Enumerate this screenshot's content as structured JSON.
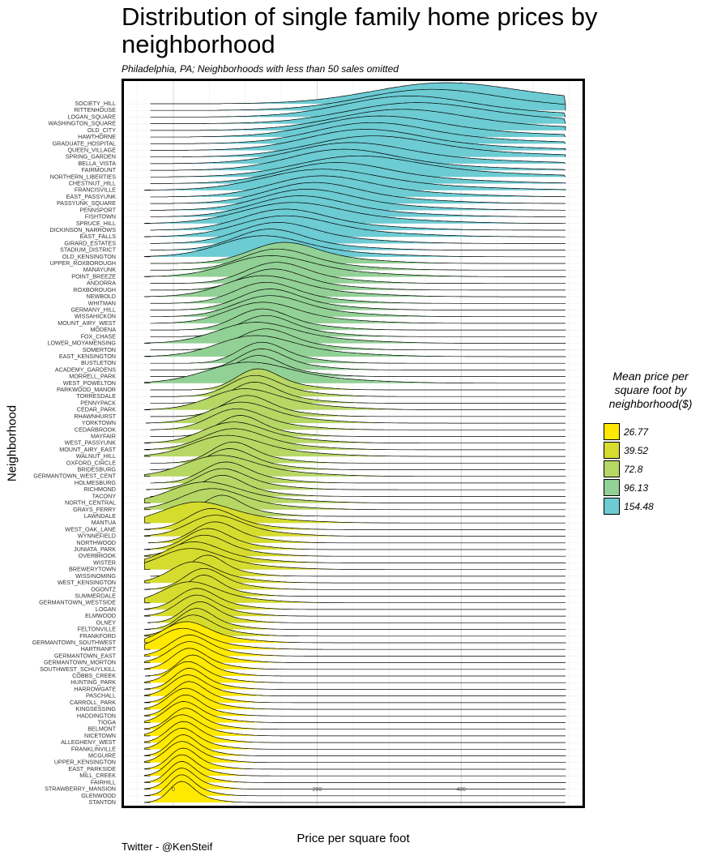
{
  "title": "Distribution of single family home prices by neighborhood",
  "subtitle": "Philadelphia, PA; Neighborhoods with less than 50 sales omitted",
  "caption": "Twitter - @KenSteif",
  "colors": {
    "154.48": "#6ccbd3",
    "96.13": "#92d195",
    "72.8": "#b7d765",
    "39.52": "#d6dc2e",
    "26.77": "#ffe900"
  },
  "chart_data": {
    "type": "ridgeline",
    "title": "Distribution of single family home prices by neighborhood",
    "subtitle": "Philadelphia, PA; Neighborhoods with less than 50 sales omitted",
    "xlabel": "Price per square foot",
    "ylabel": "Neighborhood",
    "x_ticks": [
      0,
      200,
      400
    ],
    "xlim": [
      -50,
      550
    ],
    "grid": true,
    "legend": {
      "title": "Mean price per square foot by neighborhood($)",
      "position": "right",
      "entries": [
        {
          "label": "26.77",
          "color": "#ffe900"
        },
        {
          "label": "39.52",
          "color": "#d6dc2e"
        },
        {
          "label": "72.8",
          "color": "#b7d765"
        },
        {
          "label": "96.13",
          "color": "#92d195"
        },
        {
          "label": "154.48",
          "color": "#6ccbd3"
        }
      ]
    },
    "neighborhoods": [
      {
        "name": "SOCIETY_HILL",
        "group": "154.48",
        "mode": 370,
        "spread": 95
      },
      {
        "name": "RITTENHOUSE",
        "group": "154.48",
        "mode": 350,
        "spread": 90
      },
      {
        "name": "LOGAN_SQUARE",
        "group": "154.48",
        "mode": 320,
        "spread": 85
      },
      {
        "name": "WASHINGTON_SQUARE",
        "group": "154.48",
        "mode": 330,
        "spread": 90
      },
      {
        "name": "OLD_CITY",
        "group": "154.48",
        "mode": 310,
        "spread": 85
      },
      {
        "name": "HAWTHORNE",
        "group": "154.48",
        "mode": 280,
        "spread": 80
      },
      {
        "name": "GRADUATE_HOSPITAL",
        "group": "154.48",
        "mode": 270,
        "spread": 75
      },
      {
        "name": "QUEEN_VILLAGE",
        "group": "154.48",
        "mode": 260,
        "spread": 75
      },
      {
        "name": "SPRING_GARDEN",
        "group": "154.48",
        "mode": 270,
        "spread": 80
      },
      {
        "name": "BELLA_VISTA",
        "group": "154.48",
        "mode": 240,
        "spread": 75
      },
      {
        "name": "FAIRMOUNT",
        "group": "154.48",
        "mode": 230,
        "spread": 70
      },
      {
        "name": "NORTHERN_LIBERTIES",
        "group": "154.48",
        "mode": 250,
        "spread": 80
      },
      {
        "name": "CHESTNUT_HILL",
        "group": "154.48",
        "mode": 220,
        "spread": 70
      },
      {
        "name": "FRANCISVILLE",
        "group": "154.48",
        "mode": 200,
        "spread": 75
      },
      {
        "name": "EAST_PASSYUNK",
        "group": "154.48",
        "mode": 200,
        "spread": 65
      },
      {
        "name": "PASSYUNK_SQUARE",
        "group": "154.48",
        "mode": 190,
        "spread": 60
      },
      {
        "name": "PENNSPORT",
        "group": "154.48",
        "mode": 180,
        "spread": 60
      },
      {
        "name": "FISHTOWN",
        "group": "154.48",
        "mode": 170,
        "spread": 60
      },
      {
        "name": "SPRUCE_HILL",
        "group": "154.48",
        "mode": 160,
        "spread": 65
      },
      {
        "name": "DICKINSON_NARROWS",
        "group": "154.48",
        "mode": 150,
        "spread": 55
      },
      {
        "name": "EAST_FALLS",
        "group": "154.48",
        "mode": 150,
        "spread": 60
      },
      {
        "name": "GIRARD_ESTATES",
        "group": "154.48",
        "mode": 140,
        "spread": 50
      },
      {
        "name": "STADIUM_DISTRICT",
        "group": "154.48",
        "mode": 130,
        "spread": 45
      },
      {
        "name": "OLD_KENSINGTON",
        "group": "154.48",
        "mode": 120,
        "spread": 55
      },
      {
        "name": "UPPER_ROXBOROUGH",
        "group": "96.13",
        "mode": 150,
        "spread": 45
      },
      {
        "name": "MANAYUNK",
        "group": "96.13",
        "mode": 140,
        "spread": 45
      },
      {
        "name": "POINT_BREEZE",
        "group": "96.13",
        "mode": 130,
        "spread": 55
      },
      {
        "name": "ANDORRA",
        "group": "96.13",
        "mode": 140,
        "spread": 40
      },
      {
        "name": "ROXBOROUGH",
        "group": "96.13",
        "mode": 135,
        "spread": 40
      },
      {
        "name": "NEWBOLD",
        "group": "96.13",
        "mode": 120,
        "spread": 50
      },
      {
        "name": "WHITMAN",
        "group": "96.13",
        "mode": 125,
        "spread": 40
      },
      {
        "name": "GERMANY_HILL",
        "group": "96.13",
        "mode": 130,
        "spread": 40
      },
      {
        "name": "WISSAHICKON",
        "group": "96.13",
        "mode": 130,
        "spread": 45
      },
      {
        "name": "MOUNT_AIRY_WEST",
        "group": "96.13",
        "mode": 120,
        "spread": 45
      },
      {
        "name": "MODENA",
        "group": "96.13",
        "mode": 120,
        "spread": 35
      },
      {
        "name": "FOX_CHASE",
        "group": "96.13",
        "mode": 125,
        "spread": 35
      },
      {
        "name": "LOWER_MOYAMENSING",
        "group": "96.13",
        "mode": 110,
        "spread": 50
      },
      {
        "name": "SOMERTON",
        "group": "96.13",
        "mode": 125,
        "spread": 35
      },
      {
        "name": "EAST_KENSINGTON",
        "group": "96.13",
        "mode": 110,
        "spread": 50
      },
      {
        "name": "BUSTLETON",
        "group": "96.13",
        "mode": 120,
        "spread": 30
      },
      {
        "name": "ACADEMY_GARDENS",
        "group": "96.13",
        "mode": 120,
        "spread": 30
      },
      {
        "name": "MORRELL_PARK",
        "group": "96.13",
        "mode": 115,
        "spread": 30
      },
      {
        "name": "WEST_POWELTON",
        "group": "96.13",
        "mode": 100,
        "spread": 55
      },
      {
        "name": "PARKWOOD_MANOR",
        "group": "72.8",
        "mode": 115,
        "spread": 28
      },
      {
        "name": "TORRESDALE",
        "group": "72.8",
        "mode": 110,
        "spread": 32
      },
      {
        "name": "PENNYPACK",
        "group": "72.8",
        "mode": 110,
        "spread": 30
      },
      {
        "name": "CEDAR_PARK",
        "group": "72.8",
        "mode": 95,
        "spread": 45
      },
      {
        "name": "RHAWNHURST",
        "group": "72.8",
        "mode": 100,
        "spread": 30
      },
      {
        "name": "YORKTOWN",
        "group": "72.8",
        "mode": 90,
        "spread": 40
      },
      {
        "name": "CEDARBROOK",
        "group": "72.8",
        "mode": 85,
        "spread": 35
      },
      {
        "name": "MAYFAIR",
        "group": "72.8",
        "mode": 90,
        "spread": 28
      },
      {
        "name": "WEST_PASSYUNK",
        "group": "72.8",
        "mode": 80,
        "spread": 40
      },
      {
        "name": "MOUNT_AIRY_EAST",
        "group": "72.8",
        "mode": 80,
        "spread": 40
      },
      {
        "name": "WALNUT_HILL",
        "group": "72.8",
        "mode": 70,
        "spread": 45
      },
      {
        "name": "OXFORD_CIRCLE",
        "group": "72.8",
        "mode": 80,
        "spread": 28
      },
      {
        "name": "BRIDESBURG",
        "group": "72.8",
        "mode": 75,
        "spread": 30
      },
      {
        "name": "GERMANTOWN_WEST_CENT",
        "group": "72.8",
        "mode": 60,
        "spread": 45
      },
      {
        "name": "HOLMESBURG",
        "group": "72.8",
        "mode": 70,
        "spread": 30
      },
      {
        "name": "RICHMOND",
        "group": "72.8",
        "mode": 65,
        "spread": 32
      },
      {
        "name": "TACONY",
        "group": "72.8",
        "mode": 65,
        "spread": 28
      },
      {
        "name": "NORTH_CENTRAL",
        "group": "72.8",
        "mode": 40,
        "spread": 45
      },
      {
        "name": "GRAYS_FERRY",
        "group": "72.8",
        "mode": 50,
        "spread": 40
      },
      {
        "name": "LAWNDALE",
        "group": "72.8",
        "mode": 65,
        "spread": 25
      },
      {
        "name": "MANTUA",
        "group": "39.52",
        "mode": 30,
        "spread": 45
      },
      {
        "name": "WEST_OAK_LANE",
        "group": "39.52",
        "mode": 50,
        "spread": 30
      },
      {
        "name": "WYNNEFIELD",
        "group": "39.52",
        "mode": 55,
        "spread": 35
      },
      {
        "name": "NORTHWOOD",
        "group": "39.52",
        "mode": 55,
        "spread": 28
      },
      {
        "name": "JUNIATA_PARK",
        "group": "39.52",
        "mode": 45,
        "spread": 28
      },
      {
        "name": "OVERBROOK",
        "group": "39.52",
        "mode": 40,
        "spread": 30
      },
      {
        "name": "WISTER",
        "group": "39.52",
        "mode": 25,
        "spread": 35
      },
      {
        "name": "BREWERYTOWN",
        "group": "39.52",
        "mode": 20,
        "spread": 40
      },
      {
        "name": "WISSINOMING",
        "group": "39.52",
        "mode": 45,
        "spread": 22
      },
      {
        "name": "WEST_KENSINGTON",
        "group": "39.52",
        "mode": 25,
        "spread": 30
      },
      {
        "name": "OGONTZ",
        "group": "39.52",
        "mode": 40,
        "spread": 25
      },
      {
        "name": "SUMMERDALE",
        "group": "39.52",
        "mode": 40,
        "spread": 22
      },
      {
        "name": "GERMANTOWN_WESTSIDE",
        "group": "39.52",
        "mode": 20,
        "spread": 35
      },
      {
        "name": "LOGAN",
        "group": "39.52",
        "mode": 30,
        "spread": 25
      },
      {
        "name": "ELMWOOD",
        "group": "39.52",
        "mode": 30,
        "spread": 25
      },
      {
        "name": "OLNEY",
        "group": "39.52",
        "mode": 35,
        "spread": 22
      },
      {
        "name": "FELTONVILLE",
        "group": "39.52",
        "mode": 30,
        "spread": 22
      },
      {
        "name": "FRANKFORD",
        "group": "39.52",
        "mode": 25,
        "spread": 25
      },
      {
        "name": "GERMANTOWN_SOUTHWEST",
        "group": "26.77",
        "mode": 15,
        "spread": 30
      },
      {
        "name": "HARTRANFT",
        "group": "26.77",
        "mode": 10,
        "spread": 30
      },
      {
        "name": "GERMANTOWN_EAST",
        "group": "26.77",
        "mode": 20,
        "spread": 25
      },
      {
        "name": "GERMANTOWN_MORTON",
        "group": "26.77",
        "mode": 20,
        "spread": 25
      },
      {
        "name": "SOUTHWEST_SCHUYLKILL",
        "group": "26.77",
        "mode": 20,
        "spread": 22
      },
      {
        "name": "COBBS_CREEK",
        "group": "26.77",
        "mode": 25,
        "spread": 20
      },
      {
        "name": "HUNTING_PARK",
        "group": "26.77",
        "mode": 18,
        "spread": 22
      },
      {
        "name": "HARROWGATE",
        "group": "26.77",
        "mode": 20,
        "spread": 20
      },
      {
        "name": "PASCHALL",
        "group": "26.77",
        "mode": 18,
        "spread": 22
      },
      {
        "name": "CARROLL_PARK",
        "group": "26.77",
        "mode": 20,
        "spread": 20
      },
      {
        "name": "KINGSESSING",
        "group": "26.77",
        "mode": 15,
        "spread": 22
      },
      {
        "name": "HADDINGTON",
        "group": "26.77",
        "mode": 15,
        "spread": 20
      },
      {
        "name": "TIOGA",
        "group": "26.77",
        "mode": 12,
        "spread": 22
      },
      {
        "name": "BELMONT",
        "group": "26.77",
        "mode": 15,
        "spread": 20
      },
      {
        "name": "NICETOWN",
        "group": "26.77",
        "mode": 10,
        "spread": 22
      },
      {
        "name": "ALLEGHENY_WEST",
        "group": "26.77",
        "mode": 12,
        "spread": 20
      },
      {
        "name": "FRANKLINVILLE",
        "group": "26.77",
        "mode": 10,
        "spread": 20
      },
      {
        "name": "MCGUIRE",
        "group": "26.77",
        "mode": 12,
        "spread": 18
      },
      {
        "name": "UPPER_KENSINGTON",
        "group": "26.77",
        "mode": 10,
        "spread": 20
      },
      {
        "name": "EAST_PARKSIDE",
        "group": "26.77",
        "mode": 12,
        "spread": 18
      },
      {
        "name": "MILL_CREEK",
        "group": "26.77",
        "mode": 10,
        "spread": 18
      },
      {
        "name": "FAIRHILL",
        "group": "26.77",
        "mode": 10,
        "spread": 17
      },
      {
        "name": "STRAWBERRY_MANSION",
        "group": "26.77",
        "mode": 10,
        "spread": 17
      },
      {
        "name": "GLENWOOD",
        "group": "26.77",
        "mode": 10,
        "spread": 16
      },
      {
        "name": "STANTON",
        "group": "26.77",
        "mode": 10,
        "spread": 16
      }
    ]
  }
}
